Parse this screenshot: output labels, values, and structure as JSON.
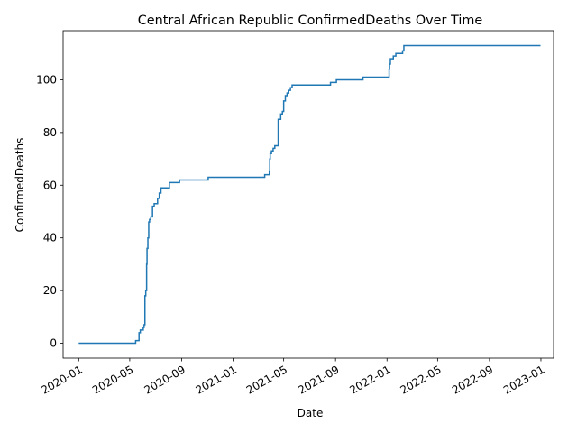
{
  "chart_data": {
    "type": "line",
    "title": "Central African Republic  ConfirmedDeaths Over Time",
    "xlabel": "Date",
    "ylabel": "ConfirmedDeaths",
    "xlim": [
      "2019-11-25",
      "2023-01-31"
    ],
    "ylim": [
      -5.65,
      118.65
    ],
    "x_ticks": [
      "2020-01",
      "2020-05",
      "2020-09",
      "2021-01",
      "2021-05",
      "2021-09",
      "2022-01",
      "2022-05",
      "2022-09",
      "2023-01"
    ],
    "x_tick_rotation": 30,
    "y_ticks": [
      0,
      20,
      40,
      60,
      80,
      100
    ],
    "grid": false,
    "line_color": "#1f77b4",
    "series": [
      {
        "step": "post",
        "points": [
          [
            "2020-01-01",
            0
          ],
          [
            "2020-05-14",
            0
          ],
          [
            "2020-05-15",
            1
          ],
          [
            "2020-05-22",
            1
          ],
          [
            "2020-05-23",
            4
          ],
          [
            "2020-05-26",
            5
          ],
          [
            "2020-06-02",
            6
          ],
          [
            "2020-06-04",
            7
          ],
          [
            "2020-06-06",
            18
          ],
          [
            "2020-06-08",
            20
          ],
          [
            "2020-06-10",
            30
          ],
          [
            "2020-06-11",
            36
          ],
          [
            "2020-06-13",
            40
          ],
          [
            "2020-06-15",
            46
          ],
          [
            "2020-06-17",
            47
          ],
          [
            "2020-06-20",
            48
          ],
          [
            "2020-06-24",
            52
          ],
          [
            "2020-06-28",
            53
          ],
          [
            "2020-07-06",
            55
          ],
          [
            "2020-07-10",
            57
          ],
          [
            "2020-07-14",
            59
          ],
          [
            "2020-08-01",
            59
          ],
          [
            "2020-08-03",
            61
          ],
          [
            "2020-08-25",
            61
          ],
          [
            "2020-08-27",
            62
          ],
          [
            "2020-11-01",
            62
          ],
          [
            "2020-11-03",
            63
          ],
          [
            "2021-03-15",
            63
          ],
          [
            "2021-03-17",
            64
          ],
          [
            "2021-03-28",
            65
          ],
          [
            "2021-03-29",
            70
          ],
          [
            "2021-03-30",
            72
          ],
          [
            "2021-04-02",
            73
          ],
          [
            "2021-04-06",
            74
          ],
          [
            "2021-04-10",
            75
          ],
          [
            "2021-04-18",
            85
          ],
          [
            "2021-04-24",
            87
          ],
          [
            "2021-04-28",
            88
          ],
          [
            "2021-05-01",
            92
          ],
          [
            "2021-05-05",
            94
          ],
          [
            "2021-05-09",
            95
          ],
          [
            "2021-05-13",
            96
          ],
          [
            "2021-05-17",
            97
          ],
          [
            "2021-05-21",
            98
          ],
          [
            "2021-08-18",
            98
          ],
          [
            "2021-08-20",
            99
          ],
          [
            "2021-09-01",
            99
          ],
          [
            "2021-09-03",
            100
          ],
          [
            "2021-11-03",
            100
          ],
          [
            "2021-11-05",
            101
          ],
          [
            "2022-01-05",
            101
          ],
          [
            "2022-01-06",
            104
          ],
          [
            "2022-01-07",
            106
          ],
          [
            "2022-01-09",
            108
          ],
          [
            "2022-01-16",
            109
          ],
          [
            "2022-01-22",
            110
          ],
          [
            "2022-02-03",
            110
          ],
          [
            "2022-02-07",
            111
          ],
          [
            "2022-02-10",
            113
          ],
          [
            "2022-12-31",
            113
          ]
        ]
      }
    ]
  }
}
